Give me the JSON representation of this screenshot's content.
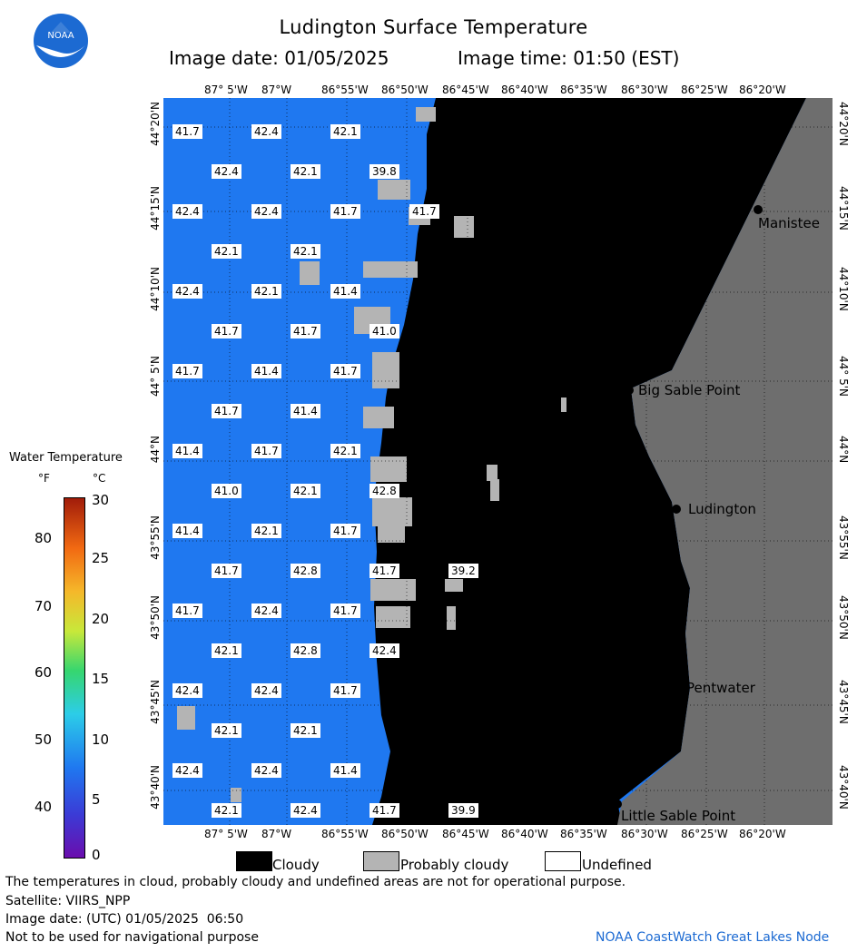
{
  "header": {
    "title": "Ludington Surface Temperature",
    "image_date": "Image date: 01/05/2025",
    "image_time": "Image time: 01:50 (EST)"
  },
  "logo": {
    "text": "NOAA",
    "color": "#1c6ad2"
  },
  "map": {
    "lon_labels": [
      "87° 5'W",
      "87°W",
      "86°55'W",
      "86°50'W",
      "86°45'W",
      "86°40'W",
      "86°35'W",
      "86°30'W",
      "86°25'W",
      "86°20'W"
    ],
    "lat_labels": [
      "44°20'N",
      "44°15'N",
      "44°10'N",
      "44° 5'N",
      "44°N",
      "43°55'N",
      "43°50'N",
      "43°45'N",
      "43°40'N"
    ],
    "cities": [
      "Manistee",
      "Big Sable Point",
      "Ludington",
      "Pentwater",
      "Little Sable Point"
    ],
    "values": [
      [
        "41.7",
        "42.4",
        "42.1"
      ],
      [
        "42.4",
        "42.1",
        "39.8"
      ],
      [
        "42.4",
        "42.4",
        "41.7",
        "41.7"
      ],
      [
        "42.1",
        "42.1"
      ],
      [
        "42.4",
        "42.1",
        "41.4"
      ],
      [
        "41.7",
        "41.7",
        "41.0"
      ],
      [
        "41.7",
        "41.4",
        "41.7"
      ],
      [
        "41.7",
        "41.4"
      ],
      [
        "41.4",
        "41.7",
        "42.1"
      ],
      [
        "41.0",
        "42.1",
        "42.8"
      ],
      [
        "41.4",
        "42.1",
        "41.7"
      ],
      [
        "41.7",
        "42.8",
        "41.7",
        "39.2"
      ],
      [
        "41.7",
        "42.4",
        "41.7"
      ],
      [
        "42.1",
        "42.8",
        "42.4"
      ],
      [
        "42.4",
        "42.4",
        "41.7"
      ],
      [
        "42.1",
        "42.1"
      ],
      [
        "42.4",
        "42.4",
        "41.4"
      ],
      [
        "42.1",
        "42.4",
        "41.7",
        "39.9"
      ]
    ],
    "colors": {
      "water": "#1f78f0",
      "cloud": "#000000",
      "land": "#6e6e6e",
      "probably_cloudy": "#b4b4b4"
    }
  },
  "colorbar": {
    "title": "Water Temperature",
    "unit_f": "°F",
    "unit_c": "°C",
    "f_ticks": [
      "80",
      "70",
      "60",
      "50",
      "40"
    ],
    "c_ticks": [
      "30",
      "25",
      "20",
      "15",
      "10",
      "5",
      "0"
    ]
  },
  "legend": {
    "cloudy": "Cloudy",
    "probably_cloudy": "Probably cloudy",
    "undefined": "Undefined"
  },
  "footer": {
    "note": "The temperatures in cloud, probably cloudy and undefined areas are not for operational purpose.",
    "satellite": "Satellite: VIIRS_NPP",
    "image_date_utc": "Image date: (UTC) 01/05/2025  06:50",
    "nav_warning": "Not to be used for navigational purpose",
    "credit": "NOAA CoastWatch Great Lakes Node"
  }
}
